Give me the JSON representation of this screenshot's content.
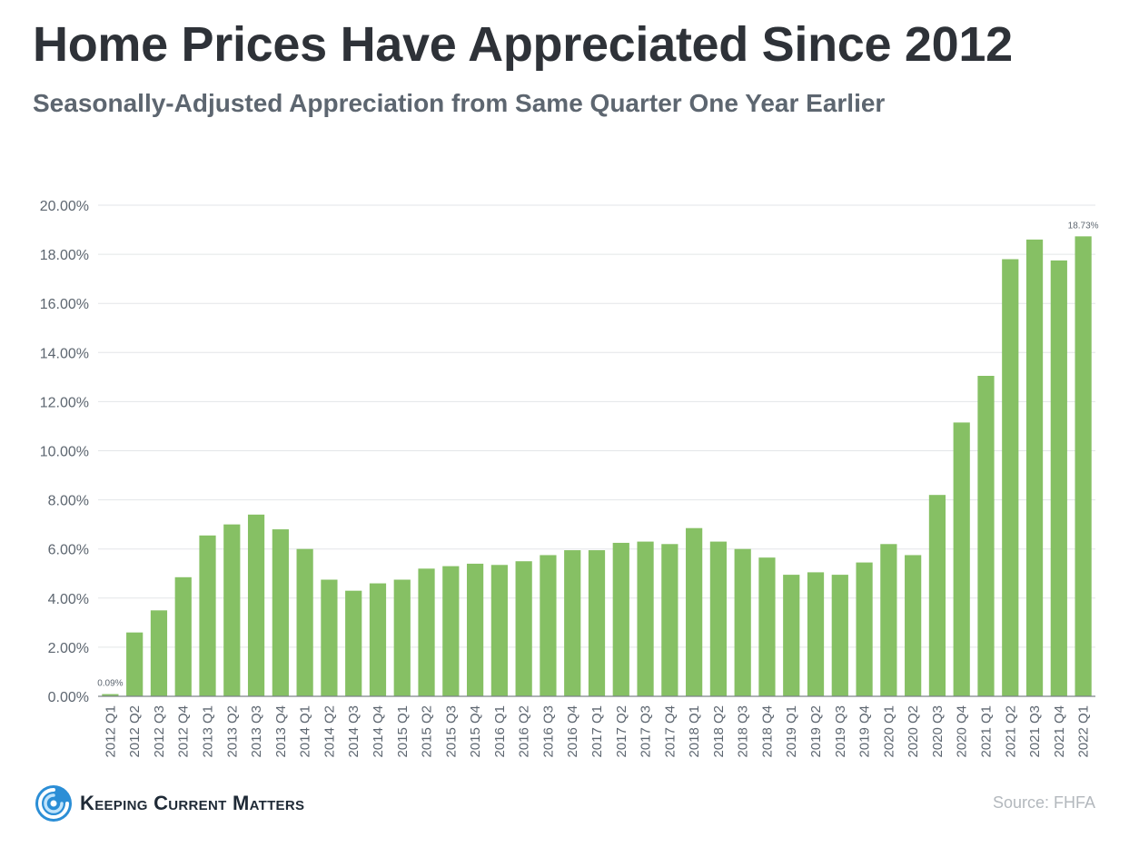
{
  "header": {
    "title": "Home Prices Have Appreciated Since 2012",
    "subtitle": "Seasonally-Adjusted Appreciation from Same Quarter One Year Earlier"
  },
  "footer": {
    "brand": "Keeping Current Matters",
    "source": "Source: FHFA"
  },
  "colors": {
    "bar": "#86c064",
    "grid": "#e3e6e8",
    "axis": "#7d848b",
    "tick_text": "#5d6670",
    "brand": "#2b8ed6"
  },
  "chart_data": {
    "type": "bar",
    "title": "Home Prices Have Appreciated Since 2012",
    "subtitle": "Seasonally-Adjusted Appreciation from Same Quarter One Year Earlier",
    "xlabel": "",
    "ylabel": "",
    "ylim": [
      0,
      20
    ],
    "yticks": [
      0,
      2,
      4,
      6,
      8,
      10,
      12,
      14,
      16,
      18,
      20
    ],
    "ytick_labels": [
      "0.00%",
      "2.00%",
      "4.00%",
      "6.00%",
      "8.00%",
      "10.00%",
      "12.00%",
      "14.00%",
      "16.00%",
      "18.00%",
      "20.00%"
    ],
    "grid": true,
    "legend": false,
    "categories": [
      "2012 Q1",
      "2012 Q2",
      "2012 Q3",
      "2012 Q4",
      "2013 Q1",
      "2013 Q2",
      "2013 Q3",
      "2013 Q4",
      "2014 Q1",
      "2014 Q2",
      "2014 Q3",
      "2014 Q4",
      "2015 Q1",
      "2015 Q2",
      "2015 Q3",
      "2015 Q4",
      "2016 Q1",
      "2016 Q2",
      "2016 Q3",
      "2016 Q4",
      "2017 Q1",
      "2017 Q2",
      "2017 Q3",
      "2017 Q4",
      "2018 Q1",
      "2018 Q2",
      "2018 Q3",
      "2018 Q4",
      "2019 Q1",
      "2019 Q2",
      "2019 Q3",
      "2019 Q4",
      "2020 Q1",
      "2020 Q2",
      "2020 Q3",
      "2020 Q4",
      "2021 Q1",
      "2021 Q2",
      "2021 Q3",
      "2021 Q4",
      "2022 Q1"
    ],
    "values": [
      0.09,
      2.6,
      3.5,
      4.85,
      6.55,
      7.0,
      7.4,
      6.8,
      6.0,
      4.75,
      4.3,
      4.6,
      4.75,
      5.2,
      5.3,
      5.4,
      5.35,
      5.5,
      5.75,
      5.95,
      5.95,
      6.25,
      6.3,
      6.2,
      6.85,
      6.3,
      6.0,
      5.65,
      4.95,
      5.05,
      4.95,
      5.45,
      6.2,
      5.75,
      8.2,
      11.15,
      13.05,
      17.8,
      18.6,
      17.75,
      18.73
    ],
    "data_labels": [
      {
        "index": 0,
        "text": "0.09%"
      },
      {
        "index": 40,
        "text": "18.73%"
      }
    ]
  }
}
